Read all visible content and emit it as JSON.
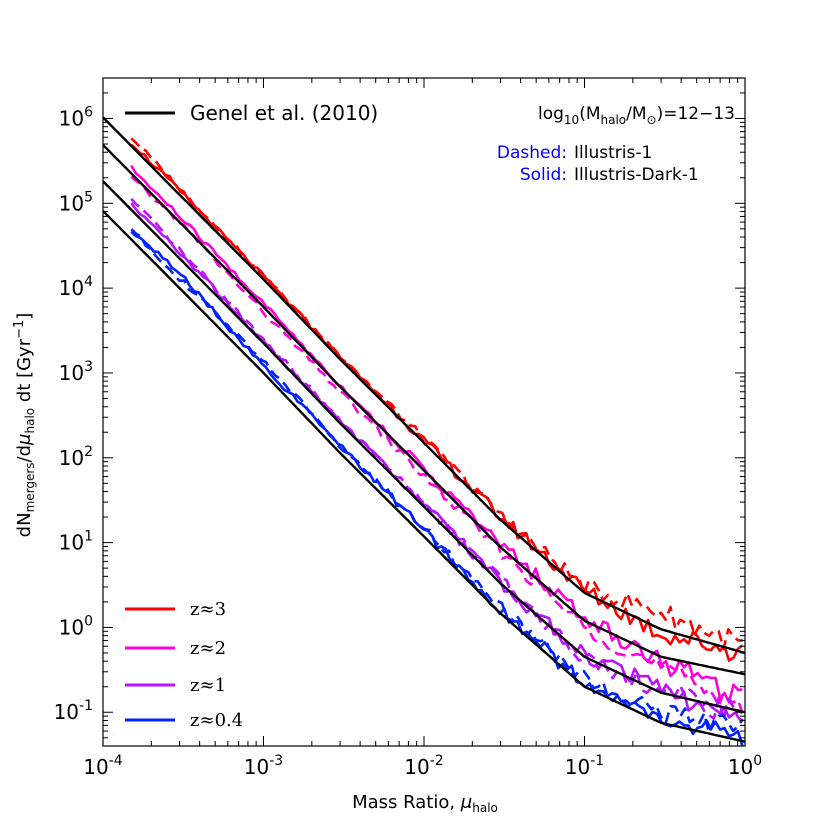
{
  "chart_data": {
    "type": "line",
    "xscale": "log",
    "yscale": "log",
    "xlim": [
      0.0001,
      1
    ],
    "ylim": [
      0.04,
      3000000
    ],
    "xlabel": {
      "text": "Mass Ratio, ",
      "symbol": "μ",
      "sub": "halo"
    },
    "ylabel": {
      "p1": "dN",
      "s1": "mergers",
      "p2": "/d",
      "sym": "μ",
      "s2": "halo",
      "p3": " dt [Gyr",
      "sup": "−1",
      "p4": "]"
    },
    "xticks": [
      {
        "value": 0.0001,
        "base": "10",
        "exp": "-4"
      },
      {
        "value": 0.001,
        "base": "10",
        "exp": "-3"
      },
      {
        "value": 0.01,
        "base": "10",
        "exp": "-2"
      },
      {
        "value": 0.1,
        "base": "10",
        "exp": "-1"
      },
      {
        "value": 1,
        "base": "10",
        "exp": "0"
      }
    ],
    "yticks": [
      {
        "value": 0.1,
        "base": "10",
        "exp": "-1"
      },
      {
        "value": 1,
        "base": "10",
        "exp": "0"
      },
      {
        "value": 10,
        "base": "10",
        "exp": "1"
      },
      {
        "value": 100,
        "base": "10",
        "exp": "2"
      },
      {
        "value": 1000,
        "base": "10",
        "exp": "3"
      },
      {
        "value": 10000,
        "base": "10",
        "exp": "4"
      },
      {
        "value": 100000,
        "base": "10",
        "exp": "5"
      },
      {
        "value": 1000000,
        "base": "10",
        "exp": "6"
      }
    ],
    "legend_top": {
      "label": "Genel et al. (2010)",
      "color": "#000000"
    },
    "halo_annotation": {
      "pre": "log",
      "sub1": "10",
      "mid": "(M",
      "sub2": "halo",
      "mid2": "/M",
      "sub3": "⊙",
      "post": ")=12−13"
    },
    "annotations": [
      {
        "key": "Dashed:",
        "value": "Illustris-1",
        "key_color": "#0000ff"
      },
      {
        "key": "Solid:",
        "value": "Illustris-Dark-1",
        "key_color": "#0000ff"
      }
    ],
    "series": [
      {
        "name": "z≈3",
        "color": "#ff0000",
        "x": [
          0.00015,
          0.0003,
          0.001,
          0.003,
          0.01,
          0.03,
          0.1,
          0.3,
          1
        ],
        "solid": [
          520000,
          140000,
          13700,
          1540,
          158,
          20,
          2.7,
          0.85,
          0.5
        ],
        "dashed": [
          600000,
          150000,
          14000,
          1600,
          165,
          21,
          3.0,
          1.5,
          0.6
        ],
        "genel": [
          475000,
          126000,
          12700,
          1450,
          150,
          18.5,
          2.55,
          0.95,
          0.5
        ]
      },
      {
        "name": "z≈2",
        "color": "#ff00dd",
        "x": [
          0.00015,
          0.0003,
          0.001,
          0.003,
          0.01,
          0.03,
          0.1,
          0.3,
          1
        ],
        "solid": [
          260000,
          70000,
          6600,
          710,
          73,
          9.5,
          1.3,
          0.4,
          0.15
        ],
        "dashed": [
          200000,
          60000,
          5200,
          600,
          60,
          8.0,
          1.0,
          0.33,
          0.12
        ],
        "genel": [
          225000,
          60000,
          6000,
          690,
          71,
          8.8,
          1.2,
          0.45,
          0.28
        ]
      },
      {
        "name": "z≈1",
        "color": "#bb11ff",
        "x": [
          0.00015,
          0.0003,
          0.001,
          0.003,
          0.01,
          0.03,
          0.1,
          0.3,
          1
        ],
        "solid": [
          95000,
          27000,
          2300,
          270,
          29,
          3.4,
          0.45,
          0.2,
          0.07
        ],
        "dashed": [
          110000,
          28000,
          2500,
          270,
          29,
          3.6,
          0.45,
          0.18,
          0.09
        ],
        "genel": [
          84000,
          22400,
          2250,
          255,
          26.5,
          3.3,
          0.45,
          0.17,
          0.1
        ]
      },
      {
        "name": "z≈0.4",
        "color": "#0022ff",
        "x": [
          0.00015,
          0.0003,
          0.001,
          0.003,
          0.01,
          0.03,
          0.1,
          0.3,
          1
        ],
        "solid": [
          48000,
          15000,
          1200,
          140,
          14,
          1.6,
          0.22,
          0.08,
          0.05
        ],
        "dashed": [
          50000,
          13000,
          1400,
          140,
          15,
          1.7,
          0.24,
          0.1,
          0.06
        ],
        "genel": [
          37500,
          10000,
          1000,
          114,
          11.8,
          1.46,
          0.2,
          0.075,
          0.045
        ]
      }
    ]
  }
}
